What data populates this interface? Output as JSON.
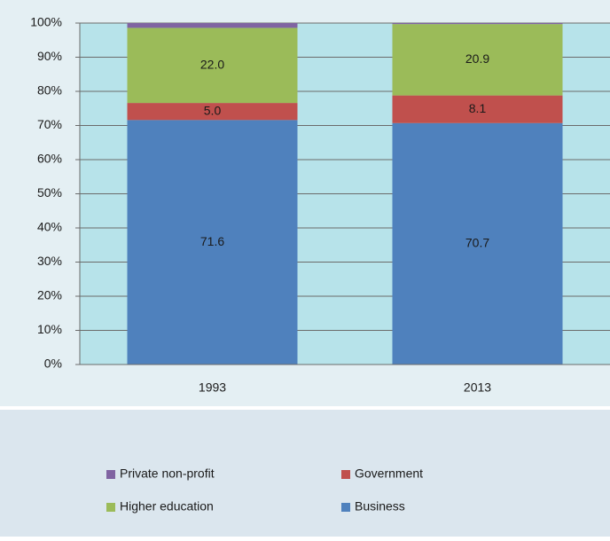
{
  "chart_data": {
    "type": "stacked_bar_100",
    "categories": [
      "1993",
      "2013"
    ],
    "series": [
      {
        "name": "Business",
        "color": "#4f81bd",
        "values": [
          71.6,
          70.7
        ],
        "value_labels": [
          "71.6",
          "70.7"
        ]
      },
      {
        "name": "Government",
        "color": "#c0504d",
        "values": [
          5.0,
          8.1
        ],
        "value_labels": [
          "5.0",
          "8.1"
        ]
      },
      {
        "name": "Higher education",
        "color": "#9bbb59",
        "values": [
          22.0,
          20.9
        ],
        "value_labels": [
          "22.0",
          "20.9"
        ]
      },
      {
        "name": "Private non-profit",
        "color": "#8064a2",
        "values": [
          1.4,
          0.3
        ]
      }
    ],
    "ylim": [
      0,
      100
    ],
    "yticks": [
      {
        "value": 0,
        "label": "0%"
      },
      {
        "value": 10,
        "label": "10%"
      },
      {
        "value": 20,
        "label": "20%"
      },
      {
        "value": 30,
        "label": "30%"
      },
      {
        "value": 40,
        "label": "40%"
      },
      {
        "value": 50,
        "label": "50%"
      },
      {
        "value": 60,
        "label": "60%"
      },
      {
        "value": 70,
        "label": "70%"
      },
      {
        "value": 80,
        "label": "80%"
      },
      {
        "value": 90,
        "label": "90%"
      },
      {
        "value": 100,
        "label": "100%"
      }
    ],
    "grid": true,
    "legend": "bottom"
  }
}
